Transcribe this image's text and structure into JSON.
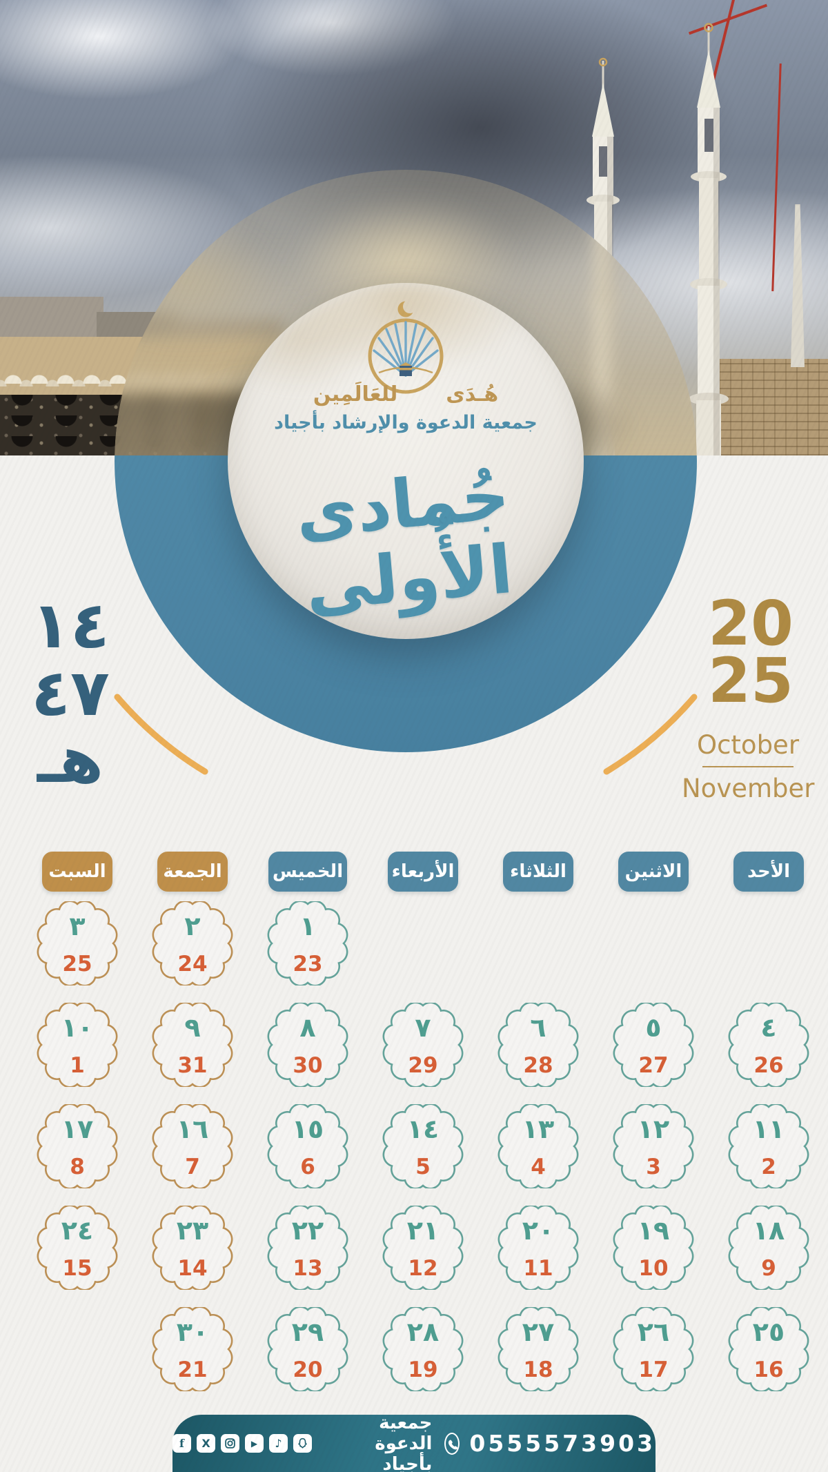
{
  "branding": {
    "name_right": "هُـدَى",
    "name_left": "للعَالَمِين",
    "subtitle": "جمعية الدعوة والإرشاد بأجياد"
  },
  "month": {
    "calligraphy": "جُمادى الأُولى",
    "hijri_year": {
      "line1": "١٤",
      "line2": "٤٧",
      "suffix": "هـ"
    },
    "greg_year": {
      "line1": "20",
      "line2": "25"
    },
    "greg_months": {
      "first": "October",
      "second": "November"
    }
  },
  "calendar": {
    "day_headers": [
      {
        "label": "السبت",
        "theme": "gold"
      },
      {
        "label": "الجمعة",
        "theme": "gold"
      },
      {
        "label": "الخميس",
        "theme": "teal"
      },
      {
        "label": "الأربعاء",
        "theme": "teal"
      },
      {
        "label": "الثلاثاء",
        "theme": "teal"
      },
      {
        "label": "الاثنين",
        "theme": "teal"
      },
      {
        "label": "الأحد",
        "theme": "teal"
      }
    ],
    "weeks": [
      [
        {
          "hijri": "٣",
          "greg": "25"
        },
        {
          "hijri": "٢",
          "greg": "24"
        },
        {
          "hijri": "١",
          "greg": "23"
        },
        null,
        null,
        null,
        null
      ],
      [
        {
          "hijri": "١٠",
          "greg": "1"
        },
        {
          "hijri": "٩",
          "greg": "31"
        },
        {
          "hijri": "٨",
          "greg": "30"
        },
        {
          "hijri": "٧",
          "greg": "29"
        },
        {
          "hijri": "٦",
          "greg": "28"
        },
        {
          "hijri": "٥",
          "greg": "27"
        },
        {
          "hijri": "٤",
          "greg": "26"
        }
      ],
      [
        {
          "hijri": "١٧",
          "greg": "8"
        },
        {
          "hijri": "١٦",
          "greg": "7"
        },
        {
          "hijri": "١٥",
          "greg": "6"
        },
        {
          "hijri": "١٤",
          "greg": "5"
        },
        {
          "hijri": "١٣",
          "greg": "4"
        },
        {
          "hijri": "١٢",
          "greg": "3"
        },
        {
          "hijri": "١١",
          "greg": "2"
        }
      ],
      [
        {
          "hijri": "٢٤",
          "greg": "15"
        },
        {
          "hijri": "٢٣",
          "greg": "14"
        },
        {
          "hijri": "٢٢",
          "greg": "13"
        },
        {
          "hijri": "٢١",
          "greg": "12"
        },
        {
          "hijri": "٢٠",
          "greg": "11"
        },
        {
          "hijri": "١٩",
          "greg": "10"
        },
        {
          "hijri": "١٨",
          "greg": "9"
        }
      ],
      [
        null,
        {
          "hijri": "٣٠",
          "greg": "21"
        },
        {
          "hijri": "٢٩",
          "greg": "20"
        },
        {
          "hijri": "٢٨",
          "greg": "19"
        },
        {
          "hijri": "٢٧",
          "greg": "18"
        },
        {
          "hijri": "٢٦",
          "greg": "17"
        },
        {
          "hijri": "٢٥",
          "greg": "16"
        }
      ]
    ]
  },
  "footer": {
    "social_icons": [
      "facebook-icon",
      "x-icon",
      "instagram-icon",
      "youtube-icon",
      "tiktok-icon",
      "snapchat-icon"
    ],
    "org_label": "جمعية الدعوة بأجياد",
    "whatsapp_icon": "whatsapp-icon",
    "phone": "0555573903"
  },
  "colors": {
    "teal_circle": "#4C84A3",
    "teal_badge": "#5187A2",
    "gold_badge": "#BF8F4A",
    "hijri_number": "#4F9E90",
    "greg_number": "#D75F36",
    "gold_year": "#AE8A43",
    "hijri_year_text": "#35617C",
    "footer_teal": "#1C5765",
    "arc_gold": "#ECAE55"
  }
}
